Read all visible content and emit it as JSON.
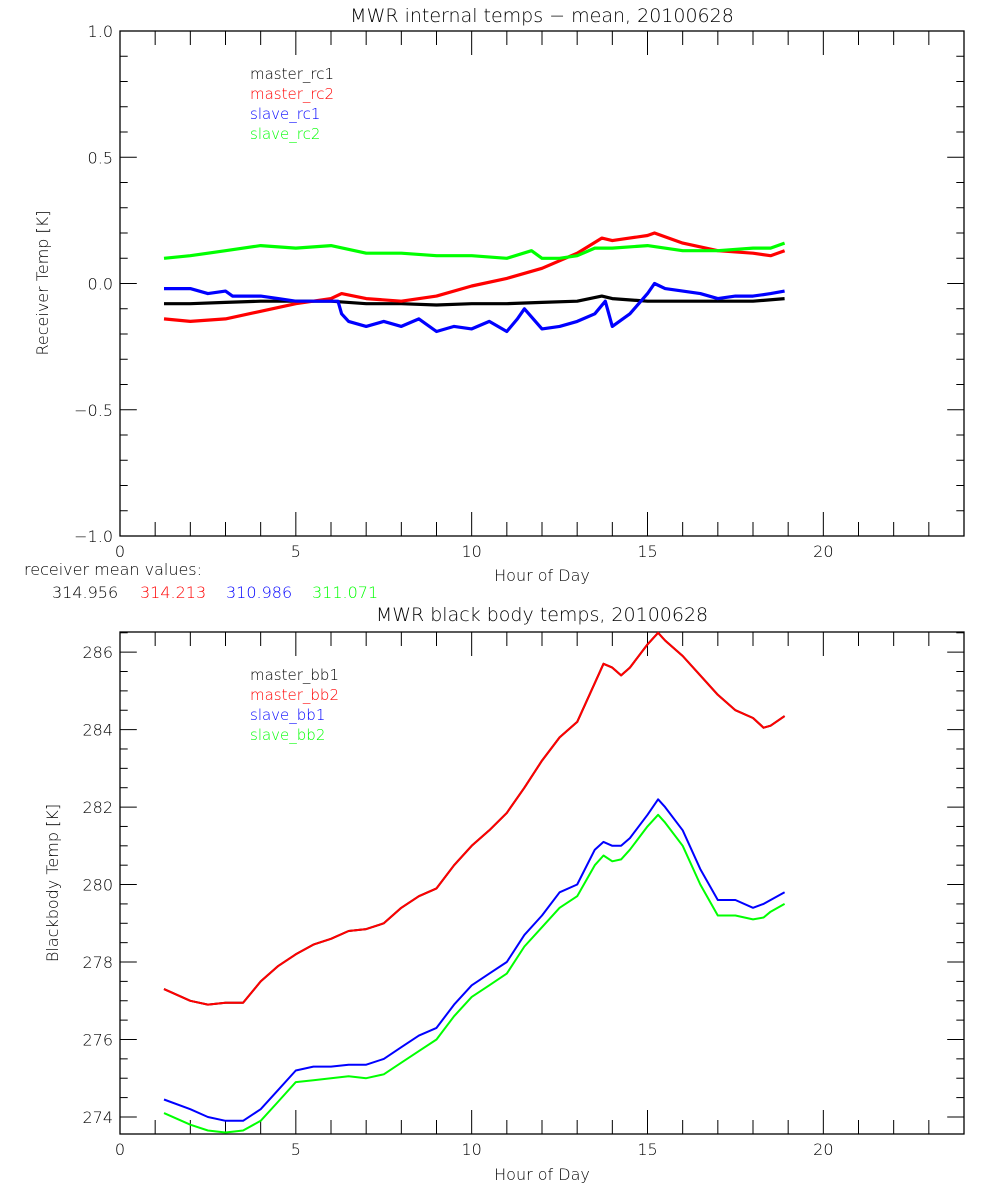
{
  "chart_data": [
    {
      "type": "line",
      "title": "MWR internal temps − mean, 20100628",
      "xlabel": "Hour of Day",
      "ylabel": "Receiver Temp [K]",
      "xlim": [
        0,
        24
      ],
      "ylim": [
        -1.0,
        1.0
      ],
      "xticks": [
        0,
        5,
        10,
        15,
        20
      ],
      "xtick_labels": [
        "0",
        "5",
        "10",
        "15",
        "20"
      ],
      "yticks": [
        -1.0,
        -0.5,
        0.0,
        0.5,
        1.0
      ],
      "ytick_labels": [
        "−1.0",
        "−0.5",
        "0.0",
        "0.5",
        "1.0"
      ],
      "x_minor_step": 1,
      "y_minor_step": 0.1,
      "grid": false,
      "legend_position": "top-left",
      "series": [
        {
          "name": "master_rc1",
          "color": "#000000",
          "x": [
            1.25,
            2,
            3,
            4,
            5,
            6,
            7,
            8,
            9,
            10,
            11,
            12,
            13,
            13.7,
            14,
            15,
            16,
            17,
            18,
            18.9
          ],
          "y": [
            -0.08,
            -0.08,
            -0.075,
            -0.07,
            -0.07,
            -0.07,
            -0.08,
            -0.08,
            -0.085,
            -0.08,
            -0.08,
            -0.075,
            -0.07,
            -0.05,
            -0.06,
            -0.07,
            -0.07,
            -0.07,
            -0.07,
            -0.06
          ]
        },
        {
          "name": "master_rc2",
          "color": "#ff0000",
          "x": [
            1.25,
            2,
            3,
            4,
            5,
            6,
            6.3,
            7,
            8,
            9,
            10,
            11,
            12,
            13,
            13.7,
            14,
            15,
            15.2,
            16,
            17,
            18,
            18.5,
            18.9
          ],
          "y": [
            -0.14,
            -0.15,
            -0.14,
            -0.11,
            -0.08,
            -0.06,
            -0.04,
            -0.06,
            -0.07,
            -0.05,
            -0.01,
            0.02,
            0.06,
            0.12,
            0.18,
            0.17,
            0.19,
            0.2,
            0.16,
            0.13,
            0.12,
            0.11,
            0.13
          ]
        },
        {
          "name": "slave_rc1",
          "color": "#0000ff",
          "x": [
            1.25,
            2,
            2.5,
            3,
            3.2,
            4,
            4.5,
            5,
            6,
            6.2,
            6.3,
            6.5,
            7,
            7.5,
            8,
            8.5,
            9,
            9.5,
            10,
            10.5,
            11,
            11.3,
            11.5,
            12,
            12.5,
            13,
            13.5,
            13.8,
            14,
            14.5,
            15,
            15.2,
            15.5,
            16,
            16.5,
            17,
            17.5,
            18,
            18.5,
            18.9
          ],
          "y": [
            -0.02,
            -0.02,
            -0.04,
            -0.03,
            -0.05,
            -0.05,
            -0.06,
            -0.07,
            -0.07,
            -0.07,
            -0.12,
            -0.15,
            -0.17,
            -0.15,
            -0.17,
            -0.14,
            -0.19,
            -0.17,
            -0.18,
            -0.15,
            -0.19,
            -0.14,
            -0.1,
            -0.18,
            -0.17,
            -0.15,
            -0.12,
            -0.07,
            -0.17,
            -0.12,
            -0.04,
            0.0,
            -0.02,
            -0.03,
            -0.04,
            -0.06,
            -0.05,
            -0.05,
            -0.04,
            -0.03
          ]
        },
        {
          "name": "slave_rc2",
          "color": "#00ff00",
          "x": [
            1.25,
            2,
            3,
            4,
            5,
            6,
            7,
            8,
            9,
            10,
            11,
            11.7,
            12,
            12.5,
            13,
            13.5,
            14,
            15,
            16,
            17,
            18,
            18.5,
            18.9
          ],
          "y": [
            0.1,
            0.11,
            0.13,
            0.15,
            0.14,
            0.15,
            0.12,
            0.12,
            0.11,
            0.11,
            0.1,
            0.13,
            0.1,
            0.1,
            0.11,
            0.14,
            0.14,
            0.15,
            0.13,
            0.13,
            0.14,
            0.14,
            0.16
          ]
        }
      ],
      "annotation": {
        "label": "receiver mean values:",
        "values": [
          {
            "series": "master_rc1",
            "value": "314.956",
            "color": "#000000"
          },
          {
            "series": "master_rc2",
            "value": "314.213",
            "color": "#ff0000"
          },
          {
            "series": "slave_rc1",
            "value": "310.986",
            "color": "#0000ff"
          },
          {
            "series": "slave_rc2",
            "value": "311.071",
            "color": "#00ff00"
          }
        ]
      }
    },
    {
      "type": "line",
      "title": "MWR black body temps, 20100628",
      "xlabel": "Hour of Day",
      "ylabel": "Blackbody Temp [K]",
      "xlim": [
        0,
        24
      ],
      "ylim": [
        273.56,
        286.52
      ],
      "xticks": [
        0,
        5,
        10,
        15,
        20
      ],
      "xtick_labels": [
        "0",
        "5",
        "10",
        "15",
        "20"
      ],
      "yticks": [
        274,
        276,
        278,
        280,
        282,
        284,
        286
      ],
      "ytick_labels": [
        "274",
        "276",
        "278",
        "280",
        "282",
        "284",
        "286"
      ],
      "x_minor_step": 1,
      "y_minor_step": 0.5,
      "grid": false,
      "legend_position": "top-left",
      "series": [
        {
          "name": "master_bb1",
          "color": "#000000",
          "x": [
            1.25,
            2,
            2.5,
            3,
            3.5,
            4,
            4.5,
            5,
            5.5,
            6,
            6.5,
            7,
            7.5,
            8,
            8.5,
            9,
            9.5,
            10,
            10.5,
            11,
            11.5,
            12,
            12.5,
            13,
            13.5,
            13.75,
            14,
            14.25,
            14.5,
            15,
            15.3,
            15.5,
            16,
            16.5,
            17,
            17.5,
            18,
            18.3,
            18.5,
            18.9
          ],
          "y": [
            277.3,
            277.0,
            276.9,
            276.95,
            276.95,
            277.5,
            277.9,
            278.2,
            278.45,
            278.6,
            278.8,
            278.85,
            279.0,
            279.4,
            279.7,
            279.9,
            280.5,
            281.0,
            281.4,
            281.85,
            282.5,
            283.2,
            283.8,
            284.2,
            285.2,
            285.7,
            285.6,
            285.4,
            285.6,
            286.2,
            286.5,
            286.3,
            285.9,
            285.4,
            284.9,
            284.5,
            284.3,
            284.05,
            284.1,
            284.35
          ]
        },
        {
          "name": "master_bb2",
          "color": "#ff0000",
          "x": [
            1.25,
            2,
            2.5,
            3,
            3.5,
            4,
            4.5,
            5,
            5.5,
            6,
            6.5,
            7,
            7.5,
            8,
            8.5,
            9,
            9.5,
            10,
            10.5,
            11,
            11.5,
            12,
            12.5,
            13,
            13.5,
            13.75,
            14,
            14.25,
            14.5,
            15,
            15.3,
            15.5,
            16,
            16.5,
            17,
            17.5,
            18,
            18.3,
            18.5,
            18.9
          ],
          "y": [
            277.3,
            277.0,
            276.9,
            276.95,
            276.95,
            277.5,
            277.9,
            278.2,
            278.45,
            278.6,
            278.8,
            278.85,
            279.0,
            279.4,
            279.7,
            279.9,
            280.5,
            281.0,
            281.4,
            281.85,
            282.5,
            283.2,
            283.8,
            284.2,
            285.2,
            285.7,
            285.6,
            285.4,
            285.6,
            286.2,
            286.5,
            286.3,
            285.9,
            285.4,
            284.9,
            284.5,
            284.3,
            284.05,
            284.1,
            284.35
          ]
        },
        {
          "name": "slave_bb1",
          "color": "#0000ff",
          "x": [
            1.25,
            2,
            2.5,
            3,
            3.5,
            4,
            4.5,
            5,
            5.5,
            6,
            6.5,
            7,
            7.5,
            8,
            8.5,
            9,
            9.5,
            10,
            10.5,
            11,
            11.5,
            12,
            12.5,
            13,
            13.5,
            13.75,
            14,
            14.25,
            14.5,
            15,
            15.3,
            15.5,
            16,
            16.5,
            17,
            17.5,
            18,
            18.3,
            18.5,
            18.9
          ],
          "y": [
            274.45,
            274.2,
            274.0,
            273.9,
            273.9,
            274.2,
            274.7,
            275.2,
            275.3,
            275.3,
            275.35,
            275.35,
            275.5,
            275.8,
            276.1,
            276.3,
            276.9,
            277.4,
            277.7,
            278.0,
            278.7,
            279.2,
            279.8,
            280.0,
            280.9,
            281.1,
            281.0,
            281.0,
            281.2,
            281.8,
            282.2,
            282.0,
            281.4,
            280.4,
            279.6,
            279.6,
            279.4,
            279.5,
            279.6,
            279.8
          ]
        },
        {
          "name": "slave_bb2",
          "color": "#00ff00",
          "x": [
            1.25,
            2,
            2.5,
            3,
            3.5,
            4,
            4.5,
            5,
            5.5,
            6,
            6.5,
            7,
            7.5,
            8,
            8.5,
            9,
            9.5,
            10,
            10.5,
            11,
            11.5,
            12,
            12.5,
            13,
            13.5,
            13.75,
            14,
            14.25,
            14.5,
            15,
            15.3,
            15.5,
            16,
            16.5,
            17,
            17.5,
            18,
            18.3,
            18.5,
            18.9
          ],
          "y": [
            274.1,
            273.8,
            273.65,
            273.6,
            273.65,
            273.9,
            274.4,
            274.9,
            274.95,
            275.0,
            275.05,
            275.0,
            275.1,
            275.4,
            275.7,
            276.0,
            276.6,
            277.1,
            277.4,
            277.7,
            278.4,
            278.9,
            279.4,
            279.7,
            280.5,
            280.75,
            280.6,
            280.65,
            280.9,
            281.5,
            281.8,
            281.6,
            281.0,
            280.0,
            279.2,
            279.2,
            279.1,
            279.15,
            279.3,
            279.5
          ]
        }
      ]
    }
  ]
}
